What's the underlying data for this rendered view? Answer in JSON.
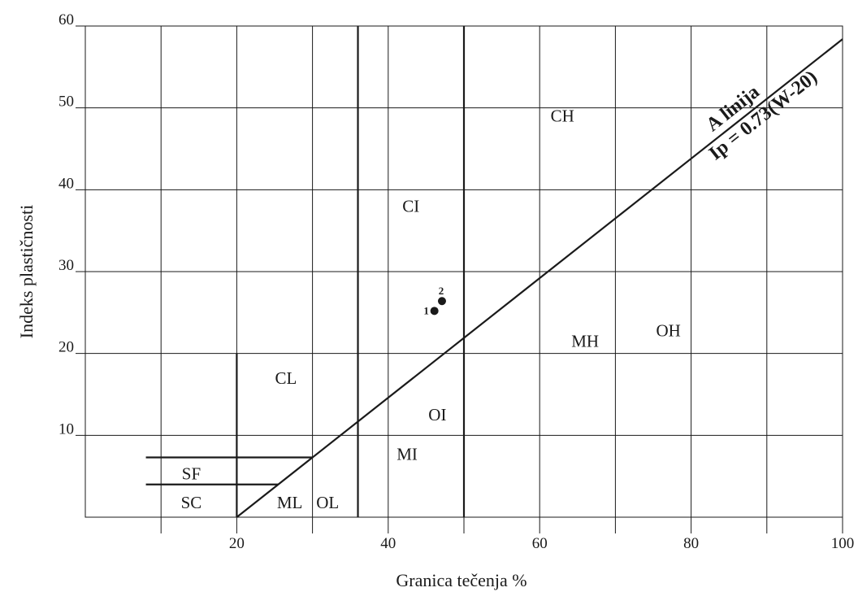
{
  "chart_data": {
    "type": "scatter",
    "title": "",
    "xlabel": "Granica tečenja   %",
    "ylabel": "Indeks plastičnosti",
    "xlim": [
      0,
      100
    ],
    "ylim": [
      0,
      60
    ],
    "x_ticks": [
      10,
      20,
      30,
      40,
      50,
      60,
      70,
      80,
      90,
      100
    ],
    "x_tick_labels": [
      "",
      "20",
      "",
      "40",
      "",
      "60",
      "",
      "80",
      "",
      "100"
    ],
    "y_ticks": [
      10,
      20,
      30,
      40,
      50,
      60
    ],
    "y_tick_labels": [
      "10",
      "20",
      "30",
      "40",
      "50",
      "60"
    ],
    "grid": true,
    "a_line": {
      "label_top": "A linija",
      "label_bottom": "Ip = 0.73(W-20)",
      "x": [
        20,
        100
      ],
      "y": [
        0,
        58.4
      ]
    },
    "boundaries": [
      {
        "x": [
          20,
          20
        ],
        "y": [
          0,
          20
        ]
      },
      {
        "x": [
          36,
          36
        ],
        "y": [
          0,
          60
        ]
      },
      {
        "x": [
          50,
          50
        ],
        "y": [
          0,
          60
        ]
      },
      {
        "x": [
          8,
          30
        ],
        "y": [
          7.3,
          7.3
        ]
      },
      {
        "x": [
          8,
          25.5
        ],
        "y": [
          4,
          4
        ]
      }
    ],
    "zones": [
      {
        "label": "CH",
        "x": 63,
        "y": 49
      },
      {
        "label": "CI",
        "x": 43,
        "y": 38
      },
      {
        "label": "CL",
        "x": 26.5,
        "y": 17
      },
      {
        "label": "OI",
        "x": 46.5,
        "y": 12.5
      },
      {
        "label": "MI",
        "x": 42.5,
        "y": 7.7
      },
      {
        "label": "MH",
        "x": 66,
        "y": 21.5
      },
      {
        "label": "OH",
        "x": 77,
        "y": 22.8
      },
      {
        "label": "SF",
        "x": 14,
        "y": 5.3
      },
      {
        "label": "SC",
        "x": 14,
        "y": 1.8
      },
      {
        "label": "ML",
        "x": 27,
        "y": 1.8
      },
      {
        "label": "OL",
        "x": 32,
        "y": 1.8
      }
    ],
    "series": [
      {
        "points": [
          {
            "x": 46.1,
            "y": 25.2,
            "label": "1"
          },
          {
            "x": 47.1,
            "y": 26.4,
            "label": "2"
          }
        ]
      }
    ]
  }
}
